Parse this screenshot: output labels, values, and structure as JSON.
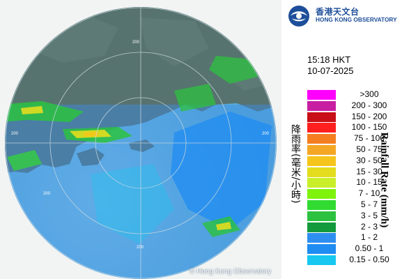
{
  "header": {
    "org_name_cn": "香港天文台",
    "org_name_en": "HONG KONG OBSERVATORY"
  },
  "timestamp": {
    "time": "15:18 HKT",
    "date": "10-07-2025"
  },
  "legend": {
    "title_cn": "降雨率(毫米/小時)",
    "title_en": "Rainfall Rate (mm/h)",
    "items": [
      {
        "label": ">300",
        "color": "#ff00ff"
      },
      {
        "label": "200 - 300",
        "color": "#c81ea2"
      },
      {
        "label": "150 - 200",
        "color": "#c80f18"
      },
      {
        "label": "100 - 150",
        "color": "#ff1f1f"
      },
      {
        "label": "75 - 100",
        "color": "#f47e20"
      },
      {
        "label": "50 - 75",
        "color": "#f4a724"
      },
      {
        "label": "30 - 50",
        "color": "#f6c51b"
      },
      {
        "label": "15 - 30",
        "color": "#e3dd1e"
      },
      {
        "label": "10 - 15",
        "color": "#c9ee2a"
      },
      {
        "label": "7 - 10",
        "color": "#7ff30c"
      },
      {
        "label": "5 - 7",
        "color": "#31db32"
      },
      {
        "label": "3 - 5",
        "color": "#2cc23f"
      },
      {
        "label": "2 - 3",
        "color": "#129a3c"
      },
      {
        "label": "1 - 2",
        "color": "#2f8ff0"
      },
      {
        "label": "0.50 - 1",
        "color": "#1f8cf2"
      },
      {
        "label": "0.15 - 0.50",
        "color": "#18c8f0"
      }
    ]
  },
  "map": {
    "range_labels": [
      "200",
      "200",
      "200",
      "200",
      "200"
    ],
    "sea_color": "#6cbcd8",
    "land_color": "#5d6e55"
  },
  "footer": {
    "copyright": "© Hong Kong Observatory"
  }
}
